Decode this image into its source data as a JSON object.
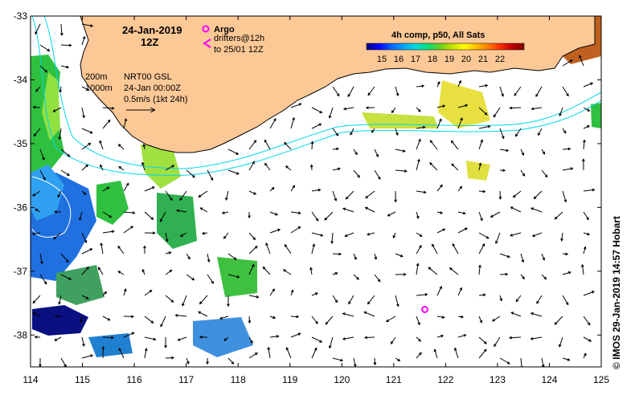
{
  "map": {
    "lon_min": 114,
    "lon_max": 125,
    "lat_min": -38.5,
    "lat_max": -33,
    "x_ticks": [
      "114",
      "115",
      "116",
      "117",
      "118",
      "119",
      "120",
      "121",
      "122",
      "123",
      "124",
      "125"
    ],
    "y_ticks": [
      "-33",
      "-34",
      "-35",
      "-36",
      "-37",
      "-38"
    ],
    "land_color": "#fcc896"
  },
  "title": {
    "date": "24-Jan-2019",
    "time": "12Z"
  },
  "legend": {
    "argo_label": "Argo",
    "drifter_label": "drifters@12h",
    "drifter_range": "to 25/01 12Z",
    "argo_color": "#ff00ff"
  },
  "info": {
    "contour_200": "200m",
    "contour_1000": "1000m",
    "source": "NRT00 GSL",
    "valid": "24-Jan 00:00Z",
    "scale": "0.5m/s (1kt 24h)"
  },
  "colorbar": {
    "title": "4h comp, p50, All Sats",
    "labels": [
      "15",
      "16",
      "17",
      "18",
      "19",
      "20",
      "21",
      "22"
    ],
    "colors": [
      "#000080",
      "#0000ff",
      "#0060ff",
      "#00a0ff",
      "#00d8e0",
      "#00e080",
      "#60d020",
      "#c0e000",
      "#ffff00",
      "#ffc000",
      "#ff8000",
      "#ff3000",
      "#c00000",
      "#800000"
    ]
  },
  "credit": "© IMOS 29-Jan-2019 14:57 Hobart",
  "argo_floats": [
    {
      "lon": 121.6,
      "lat": -37.6
    }
  ]
}
